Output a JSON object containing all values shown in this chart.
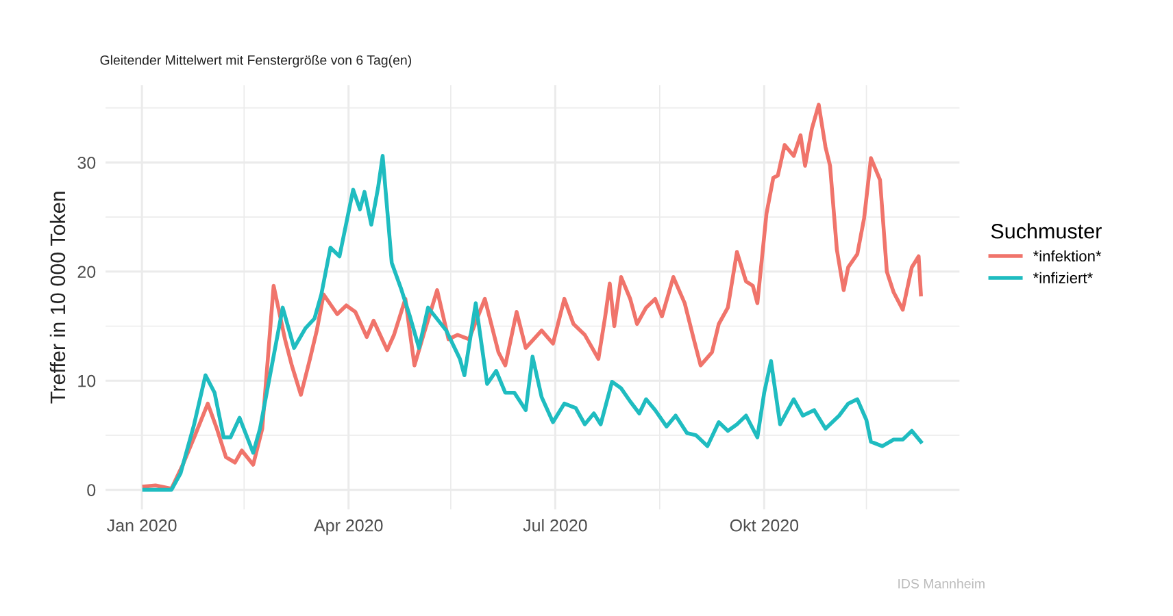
{
  "chart_data": {
    "type": "line",
    "title": "Gleitender Mittelwert mit Fenstergröße von 6 Tag(en)",
    "ylabel": "Treffer in 10 000 Token",
    "legend_title": "Suchmuster",
    "legend": "right",
    "grid": true,
    "line_style": "solid",
    "marker": "none",
    "annotations": [
      "IDS Mannheim"
    ],
    "xlim": [
      "2019-12-16",
      "2020-12-26"
    ],
    "xticks": [
      {
        "value": "2020-01-01",
        "label": "Jan 2020"
      },
      {
        "value": "2020-02-15",
        "label": null
      },
      {
        "value": "2020-04-01",
        "label": "Apr 2020"
      },
      {
        "value": "2020-05-16",
        "label": null
      },
      {
        "value": "2020-07-01",
        "label": "Jul 2020"
      },
      {
        "value": "2020-08-16",
        "label": null
      },
      {
        "value": "2020-10-01",
        "label": "Okt 2020"
      },
      {
        "value": "2020-11-15",
        "label": null
      }
    ],
    "ylim": [
      -1.8,
      37.1
    ],
    "yticks": [
      0,
      {
        "value": 5,
        "label": null
      },
      10,
      {
        "value": 15,
        "label": null
      },
      20,
      {
        "value": 25,
        "label": null
      },
      30,
      {
        "value": 35,
        "label": null
      }
    ],
    "series": [
      {
        "name": "*infektion*",
        "color": "#f0746b",
        "x": [
          "2020-01-02",
          "2020-01-07",
          "2020-01-14",
          "2020-01-19",
          "2020-01-24",
          "2020-01-30",
          "2020-02-03",
          "2020-02-07",
          "2020-02-11",
          "2020-02-14",
          "2020-02-19",
          "2020-02-23",
          "2020-02-28",
          "2020-03-04",
          "2020-03-07",
          "2020-03-11",
          "2020-03-15",
          "2020-03-18",
          "2020-03-21",
          "2020-03-27",
          "2020-03-31",
          "2020-04-04",
          "2020-04-09",
          "2020-04-12",
          "2020-04-18",
          "2020-04-21",
          "2020-04-26",
          "2020-04-30",
          "2020-05-04",
          "2020-05-10",
          "2020-05-15",
          "2020-05-19",
          "2020-05-24",
          "2020-05-31",
          "2020-06-06",
          "2020-06-09",
          "2020-06-14",
          "2020-06-18",
          "2020-06-25",
          "2020-06-30",
          "2020-07-05",
          "2020-07-09",
          "2020-07-14",
          "2020-07-20",
          "2020-07-23",
          "2020-07-25",
          "2020-07-27",
          "2020-07-30",
          "2020-08-03",
          "2020-08-06",
          "2020-08-10",
          "2020-08-14",
          "2020-08-17",
          "2020-08-22",
          "2020-08-27",
          "2020-08-31",
          "2020-09-03",
          "2020-09-08",
          "2020-09-11",
          "2020-09-15",
          "2020-09-19",
          "2020-09-23",
          "2020-09-26",
          "2020-09-28",
          "2020-10-02",
          "2020-10-05",
          "2020-10-07",
          "2020-10-10",
          "2020-10-14",
          "2020-10-17",
          "2020-10-19",
          "2020-10-22",
          "2020-10-25",
          "2020-10-28",
          "2020-10-30",
          "2020-11-02",
          "2020-11-05",
          "2020-11-07",
          "2020-11-11",
          "2020-11-14",
          "2020-11-17",
          "2020-11-21",
          "2020-11-24",
          "2020-11-27",
          "2020-12-01",
          "2020-12-05",
          "2020-12-08",
          "2020-12-09"
        ],
        "values": [
          0.3,
          0.4,
          0.1,
          2.3,
          4.8,
          7.9,
          5.6,
          3.0,
          2.5,
          3.6,
          2.3,
          5.6,
          18.7,
          13.8,
          11.4,
          8.7,
          12.0,
          14.6,
          17.9,
          16.1,
          16.9,
          16.3,
          14.0,
          15.5,
          12.8,
          14.2,
          17.5,
          11.4,
          14.2,
          18.3,
          13.8,
          14.2,
          13.8,
          17.5,
          12.6,
          11.4,
          16.3,
          13.0,
          14.6,
          13.4,
          17.5,
          15.2,
          14.2,
          12.0,
          15.9,
          18.9,
          15.0,
          19.5,
          17.5,
          15.2,
          16.7,
          17.5,
          15.9,
          19.5,
          17.1,
          13.8,
          11.4,
          12.6,
          15.2,
          16.7,
          21.8,
          19.1,
          18.7,
          17.1,
          25.3,
          28.6,
          28.8,
          31.6,
          30.6,
          32.5,
          29.7,
          33.1,
          35.3,
          31.4,
          29.7,
          22.0,
          18.3,
          20.4,
          21.6,
          24.9,
          30.4,
          28.4,
          20.0,
          18.1,
          16.5,
          20.4,
          21.4,
          17.9
        ]
      },
      {
        "name": "*infiziert*",
        "color": "#1fbcc0",
        "x": [
          "2020-01-02",
          "2020-01-14",
          "2020-01-18",
          "2020-01-24",
          "2020-01-29",
          "2020-02-02",
          "2020-02-06",
          "2020-02-09",
          "2020-02-13",
          "2020-02-19",
          "2020-02-22",
          "2020-03-03",
          "2020-03-08",
          "2020-03-13",
          "2020-03-17",
          "2020-03-20",
          "2020-03-24",
          "2020-03-28",
          "2020-04-03",
          "2020-04-06",
          "2020-04-08",
          "2020-04-11",
          "2020-04-14",
          "2020-04-16",
          "2020-04-20",
          "2020-04-24",
          "2020-04-28",
          "2020-05-02",
          "2020-05-06",
          "2020-05-14",
          "2020-05-20",
          "2020-05-22",
          "2020-05-27",
          "2020-06-01",
          "2020-06-05",
          "2020-06-09",
          "2020-06-13",
          "2020-06-18",
          "2020-06-21",
          "2020-06-25",
          "2020-06-30",
          "2020-07-05",
          "2020-07-10",
          "2020-07-14",
          "2020-07-18",
          "2020-07-21",
          "2020-07-26",
          "2020-07-30",
          "2020-08-03",
          "2020-08-07",
          "2020-08-10",
          "2020-08-14",
          "2020-08-19",
          "2020-08-23",
          "2020-08-28",
          "2020-09-01",
          "2020-09-06",
          "2020-09-11",
          "2020-09-15",
          "2020-09-19",
          "2020-09-23",
          "2020-09-28",
          "2020-10-01",
          "2020-10-04",
          "2020-10-08",
          "2020-10-14",
          "2020-10-18",
          "2020-10-23",
          "2020-10-28",
          "2020-11-03",
          "2020-11-07",
          "2020-11-11",
          "2020-11-15",
          "2020-11-17",
          "2020-11-22",
          "2020-11-27",
          "2020-12-01",
          "2020-12-05",
          "2020-12-09"
        ],
        "values": [
          0.0,
          0.0,
          1.5,
          6.0,
          10.5,
          8.9,
          4.8,
          4.8,
          6.6,
          3.4,
          5.6,
          16.7,
          13.0,
          14.8,
          15.7,
          17.9,
          22.2,
          21.4,
          27.5,
          25.7,
          27.3,
          24.3,
          27.7,
          30.6,
          20.8,
          18.5,
          15.9,
          13.0,
          16.7,
          14.6,
          12.0,
          10.5,
          17.1,
          9.7,
          10.9,
          8.9,
          8.9,
          7.3,
          12.2,
          8.5,
          6.2,
          7.9,
          7.5,
          6.0,
          7.0,
          6.0,
          9.9,
          9.3,
          8.1,
          7.0,
          8.3,
          7.3,
          5.8,
          6.8,
          5.2,
          5.0,
          4.0,
          6.2,
          5.4,
          6.0,
          6.8,
          4.8,
          8.9,
          11.8,
          6.0,
          8.3,
          6.8,
          7.3,
          5.6,
          6.8,
          7.9,
          8.3,
          6.4,
          4.4,
          4.0,
          4.6,
          4.6,
          5.4,
          4.4
        ]
      }
    ]
  }
}
